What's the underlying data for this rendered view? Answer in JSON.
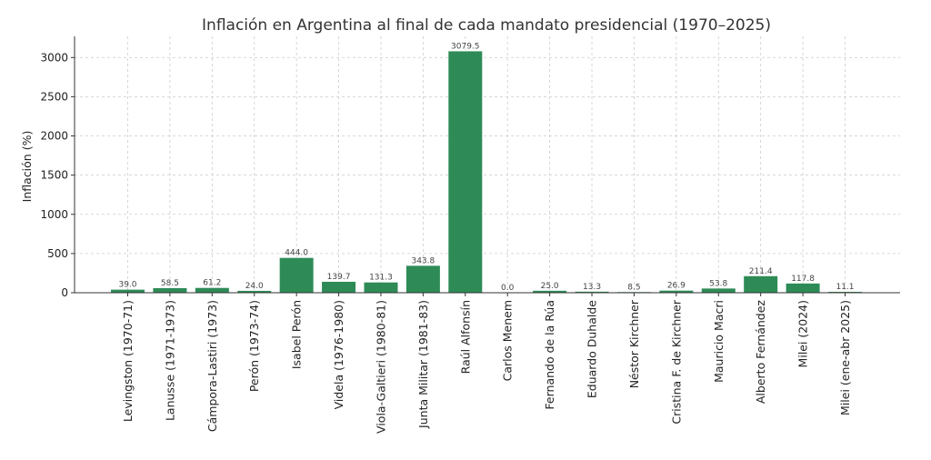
{
  "chart_data": {
    "type": "bar",
    "title": "Inflación en Argentina al final de cada mandato presidencial (1970–2025)",
    "xlabel": "",
    "ylabel": "Inflación (%)",
    "ylim": [
      0,
      3270
    ],
    "yticks": [
      0,
      500,
      1000,
      1500,
      2000,
      2500,
      3000
    ],
    "grid": true,
    "bar_color": "#2e8b57",
    "categories": [
      "Levingston (1970-71)",
      "Lanusse (1971-1973)",
      "Cámpora-Lastiri (1973)",
      "Perón (1973-74)",
      "Isabel Perón",
      "Videla (1976-1980)",
      "Viola-Galtieri (1980-81)",
      "Junta Militar (1981-83)",
      "Raúl Alfonsín",
      "Carlos Menem",
      "Fernando de la Rúa",
      "Eduardo Duhalde",
      "Néstor Kirchner",
      "Cristina F. de Kirchner",
      "Mauricio Macri",
      "Alberto Fernández",
      "Milei (2024)",
      "Milei (ene-abr 2025)"
    ],
    "values": [
      39.0,
      58.5,
      61.2,
      24.0,
      444.0,
      139.7,
      131.3,
      343.8,
      3079.5,
      0.0,
      25.0,
      13.3,
      8.5,
      26.9,
      53.8,
      211.4,
      117.8,
      11.1
    ],
    "value_labels": [
      "39.0",
      "58.5",
      "61.2",
      "24.0",
      "444.0",
      "139.7",
      "131.3",
      "343.8",
      "3079.5",
      "0.0",
      "25.0",
      "13.3",
      "8.5",
      "26.9",
      "53.8",
      "211.4",
      "117.8",
      "11.1"
    ]
  }
}
